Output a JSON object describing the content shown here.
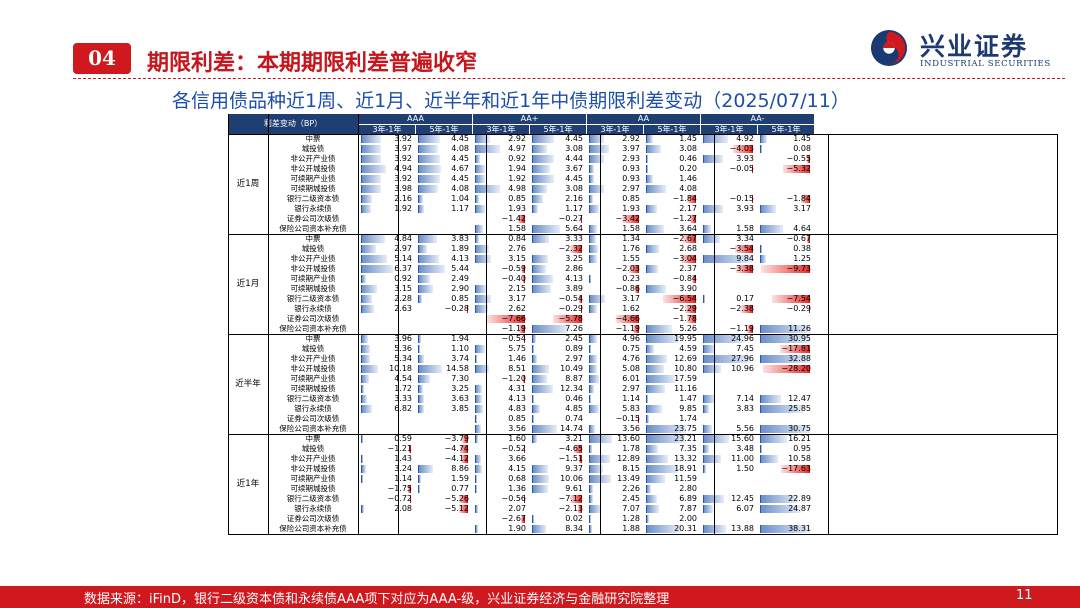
{
  "header": {
    "badge": "04",
    "title": "期限利差：本期期限利差普遍收窄"
  },
  "logo": {
    "cn": "兴业证券",
    "en": "INDUSTRIAL SECURITIES"
  },
  "subtitle": "各信用债品种近1周、近1月、近半年和近1年中债期限利差变动（2025/07/11）",
  "table": {
    "corner": "利差变动（BP）",
    "ratings": [
      "AAA",
      "AA+",
      "AA",
      "AA-"
    ],
    "terms": [
      "3年-1年",
      "5年-1年"
    ],
    "products": [
      "中票",
      "城投债",
      "非公开产业债",
      "非公开城投债",
      "可续期产业债",
      "可续期城投债",
      "银行二级资本债",
      "银行永续债",
      "证券公司次级债",
      "保险公司资本补充债"
    ],
    "periods": [
      {
        "name": "近1周",
        "scale": 10,
        "rows": [
          [
            3.92,
            4.45,
            2.92,
            4.45,
            2.92,
            1.45,
            4.92,
            1.45
          ],
          [
            3.97,
            4.08,
            4.97,
            3.08,
            3.97,
            3.08,
            -4.03,
            0.08
          ],
          [
            3.92,
            4.45,
            0.92,
            4.44,
            2.93,
            0.46,
            3.93,
            -0.55
          ],
          [
            4.94,
            4.67,
            1.94,
            3.67,
            0.93,
            0.2,
            -0.05,
            -5.32
          ],
          [
            3.92,
            4.45,
            1.92,
            4.45,
            0.93,
            1.46,
            null,
            null
          ],
          [
            3.98,
            4.08,
            4.98,
            3.08,
            2.97,
            4.08,
            null,
            null
          ],
          [
            2.16,
            1.04,
            0.85,
            2.16,
            0.85,
            -1.84,
            -0.15,
            -1.84
          ],
          [
            1.92,
            1.17,
            1.93,
            1.17,
            1.93,
            2.17,
            3.93,
            3.17
          ],
          [
            null,
            null,
            -1.42,
            -0.27,
            -3.42,
            -1.27,
            null,
            null
          ],
          [
            null,
            null,
            1.58,
            5.64,
            1.58,
            3.64,
            1.58,
            4.64
          ]
        ]
      },
      {
        "name": "近1月",
        "scale": 10,
        "rows": [
          [
            4.84,
            3.83,
            0.84,
            3.33,
            1.34,
            -2.67,
            3.34,
            -0.67
          ],
          [
            2.97,
            1.89,
            2.76,
            -2.32,
            1.76,
            2.68,
            -3.54,
            0.38
          ],
          [
            5.14,
            4.13,
            3.15,
            3.25,
            1.55,
            -3.04,
            9.84,
            1.25
          ],
          [
            6.37,
            5.44,
            -0.59,
            2.86,
            -2.03,
            2.37,
            -3.38,
            -9.73
          ],
          [
            0.92,
            2.49,
            -0.4,
            4.13,
            0.23,
            -0.84,
            null,
            null
          ],
          [
            3.15,
            2.9,
            2.15,
            3.89,
            -0.86,
            3.9,
            null,
            null
          ],
          [
            2.28,
            0.85,
            3.17,
            -0.54,
            3.17,
            -6.54,
            0.17,
            -7.54
          ],
          [
            2.63,
            -0.28,
            2.62,
            -0.29,
            1.62,
            -2.29,
            -2.38,
            -0.29
          ],
          [
            null,
            null,
            -7.66,
            -5.78,
            -4.66,
            -1.78,
            null,
            null
          ],
          [
            null,
            null,
            -1.19,
            7.26,
            -1.19,
            5.26,
            -1.19,
            11.26
          ]
        ]
      },
      {
        "name": "近半年",
        "scale": 30,
        "rows": [
          [
            3.96,
            1.94,
            -0.54,
            2.45,
            4.96,
            19.95,
            24.96,
            30.95
          ],
          [
            5.36,
            1.1,
            5.75,
            0.89,
            0.75,
            4.59,
            7.45,
            -17.81
          ],
          [
            5.34,
            3.74,
            1.46,
            2.97,
            4.76,
            12.69,
            27.96,
            32.88
          ],
          [
            10.18,
            14.58,
            8.51,
            10.49,
            5.08,
            10.8,
            10.96,
            -28.2
          ],
          [
            4.54,
            7.3,
            -1.2,
            8.87,
            6.01,
            17.59,
            null,
            null
          ],
          [
            1.72,
            3.25,
            4.31,
            12.34,
            2.97,
            11.16,
            null,
            null
          ],
          [
            3.33,
            3.63,
            4.13,
            0.46,
            1.14,
            1.47,
            7.14,
            12.47
          ],
          [
            6.82,
            3.85,
            4.83,
            4.85,
            5.83,
            9.85,
            3.83,
            25.85
          ],
          [
            null,
            null,
            0.85,
            0.74,
            -0.15,
            1.74,
            null,
            null
          ],
          [
            null,
            null,
            3.56,
            14.74,
            3.56,
            23.75,
            5.56,
            30.75
          ]
        ]
      },
      {
        "name": "近1年",
        "scale": 30,
        "rows": [
          [
            0.59,
            -3.79,
            1.6,
            3.21,
            13.6,
            23.21,
            15.6,
            16.21
          ],
          [
            -1.21,
            -4.74,
            -0.52,
            -4.65,
            1.78,
            7.35,
            3.48,
            0.95
          ],
          [
            1.43,
            -4.12,
            3.66,
            -1.51,
            12.89,
            13.32,
            11.0,
            10.58
          ],
          [
            3.24,
            8.86,
            4.15,
            9.37,
            8.15,
            18.91,
            1.5,
            -17.63
          ],
          [
            1.14,
            1.59,
            0.68,
            10.06,
            13.49,
            11.59,
            null,
            null
          ],
          [
            -1.75,
            0.77,
            1.36,
            9.61,
            2.26,
            2.8,
            null,
            null
          ],
          [
            -0.72,
            -5.26,
            -0.56,
            -7.12,
            2.45,
            6.89,
            12.45,
            22.89
          ],
          [
            2.08,
            -5.12,
            2.07,
            -2.13,
            7.07,
            7.87,
            6.07,
            24.87
          ],
          [
            null,
            null,
            -2.67,
            0.02,
            1.28,
            2.0,
            null,
            null
          ],
          [
            null,
            null,
            1.9,
            8.34,
            1.88,
            20.31,
            13.88,
            38.31
          ]
        ]
      }
    ]
  },
  "footer": {
    "source": "数据来源：iFinD，银行二级资本债和永续债AAA项下对应为AAA-级，兴业证券经济与金融研究院整理",
    "page": "11"
  },
  "colors": {
    "accent": "#d0191f",
    "header_bg": "#1f3f73",
    "pos_bar": "#6b8fc9",
    "neg_bar": "#e8302d"
  }
}
